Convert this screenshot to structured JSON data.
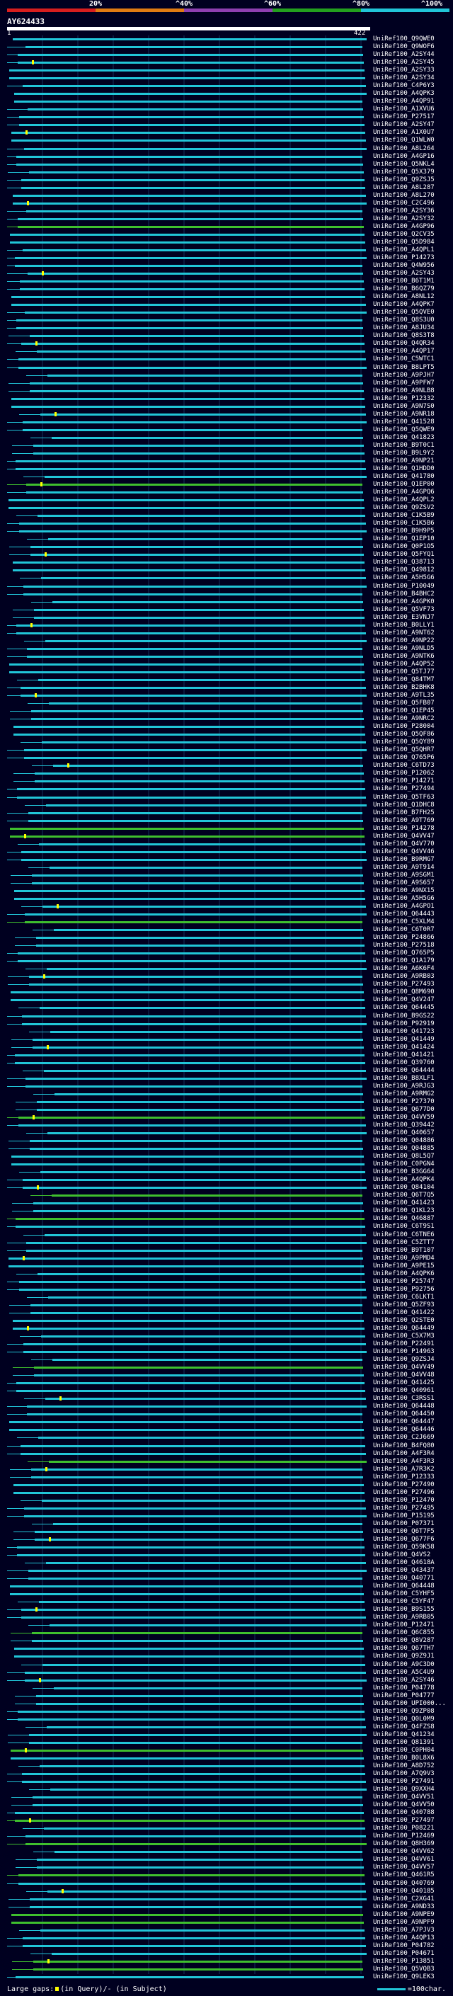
{
  "scale": {
    "labels": [
      "20%",
      "^40%",
      "^60%",
      "^80%",
      "^100%"
    ],
    "colors": [
      "#d81e1e",
      "#e07b12",
      "#8e3fb0",
      "#23a01e",
      "#21c5d8"
    ]
  },
  "query": {
    "name": "AY624433",
    "start": "1",
    "end": "422"
  },
  "colors": {
    "background": "#000020",
    "cyan": "#21c5d8",
    "green": "#3fbf2e",
    "gap": "#ffff00",
    "guide": "#14325a"
  },
  "hits": [
    "UniRef100_Q9QWE0",
    "UniRef100_Q9WOF6",
    "UniRef100_A2SY44",
    "UniRef100_A2SY45",
    "UniRef100_A2SY33",
    "UniRef100_A2SY34",
    "UniRef100_C4P6Y3",
    "UniRef100_A4QPK3",
    "UniRef100_A4QP91",
    "UniRef100_A1XVU6",
    "UniRef100_P27517",
    "UniRef100_A2SY47",
    "UniRef100_A1X0U7",
    "UniRef100_Q1WLW0",
    "UniRef100_A8L264",
    "UniRef100_A4GP16",
    "UniRef100_Q5NKL4",
    "UniRef100_Q5X379",
    "UniRef100_Q9ZSJ5",
    "UniRef100_A8L287",
    "UniRef100_A8L270",
    "UniRef100_C2C496",
    "UniRef100_A2SY36",
    "UniRef100_A2SY32",
    "UniRef100_A4GP96",
    "UniRef100_Q2CV35",
    "UniRef100_Q5D984",
    "UniRef100_A4QPL1",
    "UniRef100_P14273",
    "UniRef100_Q4W956",
    "UniRef100_A2SY43",
    "UniRef100_B6T1M1",
    "UniRef100_B6QZ79",
    "UniRef100_A8NL12",
    "UniRef100_A4QPK7",
    "UniRef100_Q5QVE0",
    "UniRef100_Q8S3U0",
    "UniRef100_A8JU34",
    "UniRef100_Q8S3T8",
    "UniRef100_Q4QR34",
    "UniRef100_A4QP17",
    "UniRef100_C5WTC1",
    "UniRef100_B8LPT5",
    "UniRef100_A9PJH7",
    "UniRef100_A9PFW7",
    "UniRef100_A9NLB8",
    "UniRef100_P12332",
    "UniRef100_A9N7S0",
    "UniRef100_A9NR18",
    "UniRef100_Q41528",
    "UniRef100_Q5QWE9",
    "UniRef100_Q41823",
    "UniRef100_B9T0C1",
    "UniRef100_B9L9Y2",
    "UniRef100_A9NP21",
    "UniRef100_Q1HDD0",
    "UniRef100_Q41780",
    "UniRef100_Q1EP00",
    "UniRef100_A4GPQ6",
    "UniRef100_A4QPL2",
    "UniRef100_Q9ZSV2",
    "UniRef100_C1K5B9",
    "UniRef100_C1K5B6",
    "UniRef100_B9H9P5",
    "UniRef100_Q1EP10",
    "UniRef100_Q0P1O5",
    "UniRef100_Q5FYQ1",
    "UniRef100_Q38713",
    "UniRef100_Q49812",
    "UniRef100_A5H5G6",
    "UniRef100_P10049",
    "UniRef100_B4BHC2",
    "UniRef100_A4GPK0",
    "UniRef100_Q5VF73",
    "UniRef100_E3VNJ7",
    "UniRef100_B0LLY1",
    "UniRef100_A9NT62",
    "UniRef100_A9NP22",
    "UniRef100_A9NLD5",
    "UniRef100_A9NTK6",
    "UniRef100_A4QP52",
    "UniRef100_Q5TJ77",
    "UniRef100_Q84TM7",
    "UniRef100_B2BHK8",
    "UniRef100_A9TL35",
    "UniRef100_Q5FB07",
    "UniRef100_Q1EP45",
    "UniRef100_A9NRC2",
    "UniRef100_P28004",
    "UniRef100_Q5QF86",
    "UniRef100_Q5QY89",
    "UniRef100_Q5QHR7",
    "UniRef100_Q765P6",
    "UniRef100_C6TD73",
    "UniRef100_P12062",
    "UniRef100_P14271",
    "UniRef100_P27494",
    "UniRef100_Q5TF63",
    "UniRef100_Q1DHC8",
    "UniRef100_B7FH25",
    "UniRef100_A9T769",
    "UniRef100_P14278",
    "UniRef100_Q4VV47",
    "UniRef100_Q4V770",
    "UniRef100_Q4VV46",
    "UniRef100_B9RMG7",
    "UniRef100_A9T914",
    "UniRef100_A9SGM1",
    "UniRef100_A9S657",
    "UniRef100_A9NX15",
    "UniRef100_A5H5G6",
    "UniRef100_A4GPO1",
    "UniRef100_Q64443",
    "UniRef100_C5XLM4",
    "UniRef100_C6T0R7",
    "UniRef100_P24866",
    "UniRef100_P27518",
    "UniRef100_Q765P5",
    "UniRef100_Q1A179",
    "UniRef100_A6K6F4",
    "UniRef100_A9RB03",
    "UniRef100_P27493",
    "UniRef100_Q8M690",
    "UniRef100_Q4V247",
    "UniRef100_Q64445",
    "UniRef100_B9GS22",
    "UniRef100_P92919",
    "UniRef100_Q41723",
    "UniRef100_Q41449",
    "UniRef100_Q41424",
    "UniRef100_Q41421",
    "UniRef100_Q39760",
    "UniRef100_Q64444",
    "UniRef100_B8XLF1",
    "UniRef100_A9RJG3",
    "UniRef100_A9RMG2",
    "UniRef100_P27370",
    "UniRef100_Q677D0",
    "UniRef100_Q4VV59",
    "UniRef100_Q39442",
    "UniRef100_Q40657",
    "UniRef100_Q04886",
    "UniRef100_Q04885",
    "UniRef100_Q8L5Q7",
    "UniRef100_C0PGN4",
    "UniRef100_B3GG64",
    "UniRef100_A4QPK4",
    "UniRef100_Q84104",
    "UniRef100_Q6T7Q5",
    "UniRef100_Q41423",
    "UniRef100_Q1KL23",
    "UniRef100_Q46887",
    "UniRef100_C6T9S1",
    "UniRef100_C6TNE6",
    "UniRef100_C5ZTT7",
    "UniRef100_B9T107",
    "UniRef100_A9PMD4",
    "UniRef100_A9PE15",
    "UniRef100_A4QPK6",
    "UniRef100_P25747",
    "UniRef100_P92756",
    "UniRef100_C6LKT1",
    "UniRef100_Q5ZF93",
    "UniRef100_Q41422",
    "UniRef100_Q2STE0",
    "UniRef100_Q64449",
    "UniRef100_C5X7M3",
    "UniRef100_P22491",
    "UniRef100_P14963",
    "UniRef100_Q9ZSJ4",
    "UniRef100_Q4VV49",
    "UniRef100_Q4VV48",
    "UniRef100_Q41425",
    "UniRef100_Q40961",
    "UniRef100_C3RSS1",
    "UniRef100_Q64448",
    "UniRef100_Q64450",
    "UniRef100_Q64447",
    "UniRef100_Q64446",
    "UniRef100_C2J669",
    "UniRef100_B4FQ80",
    "UniRef100_A4F3R4",
    "UniRef100_A4F3R3",
    "UniRef100_A7R3K2",
    "UniRef100_P12333",
    "UniRef100_P27490",
    "UniRef100_P27496",
    "UniRef100_P12470",
    "UniRef100_P27495",
    "UniRef100_P15195",
    "UniRef100_P07371",
    "UniRef100_Q6T7F5",
    "UniRef100_Q677F6",
    "UniRef100_Q59K58",
    "UniRef100_Q4VS2",
    "UniRef100_Q4618A",
    "UniRef100_Q43437",
    "UniRef100_Q40771",
    "UniRef100_Q64448",
    "UniRef100_C5YHF5",
    "UniRef100_C5YF47",
    "UniRef100_B9S155",
    "UniRef100_A9RB05",
    "UniRef100_P12471",
    "UniRef100_Q6C855",
    "UniRef100_Q8V287",
    "UniRef100_Q67TH7",
    "UniRef100_Q9Z9J1",
    "UniRef100_A9C3D0",
    "UniRef100_A5C4U9",
    "UniRef100_A2SY46",
    "UniRef100_P04778",
    "UniRef100_P04777",
    "UniRef100_UPI000...",
    "UniRef100_Q9ZP08",
    "UniRef100_Q0L0M9",
    "UniRef100_Q4FZS8",
    "UniRef100_Q41234",
    "UniRef100_Q81391",
    "UniRef100_C0PH04",
    "UniRef100_B0L8X6",
    "UniRef100_A8D752",
    "UniRef100_A7Q9V3",
    "UniRef100_P27491",
    "UniRef100_Q9XXH4",
    "UniRef100_Q4VV51",
    "UniRef100_Q4VV50",
    "UniRef100_Q40788",
    "UniRef100_P27497",
    "UniRef100_P08221",
    "UniRef100_P12469",
    "UniRef100_Q8H369",
    "UniRef100_Q4VV62",
    "UniRef100_Q4VV61",
    "UniRef100_Q4VV57",
    "UniRef100_Q461R5",
    "UniRef100_Q40769",
    "UniRef100_Q40185",
    "UniRef100_C2XG41",
    "UniRef100_A9ND33",
    "UniRef100_A9NPE9",
    "UniRef100_A9NPF9",
    "UniRef100_A7PJV3",
    "UniRef100_A4QP13",
    "UniRef100_P04782",
    "UniRef100_P04671",
    "UniRef100_P13851",
    "UniRef100_Q5VQB3",
    "UniRef100_Q9LEK3"
  ],
  "legend": {
    "gaps_prefix": "Large gaps:",
    "gaps_text": "(in Query)/- (in Subject)",
    "scale_text": "=100char."
  }
}
